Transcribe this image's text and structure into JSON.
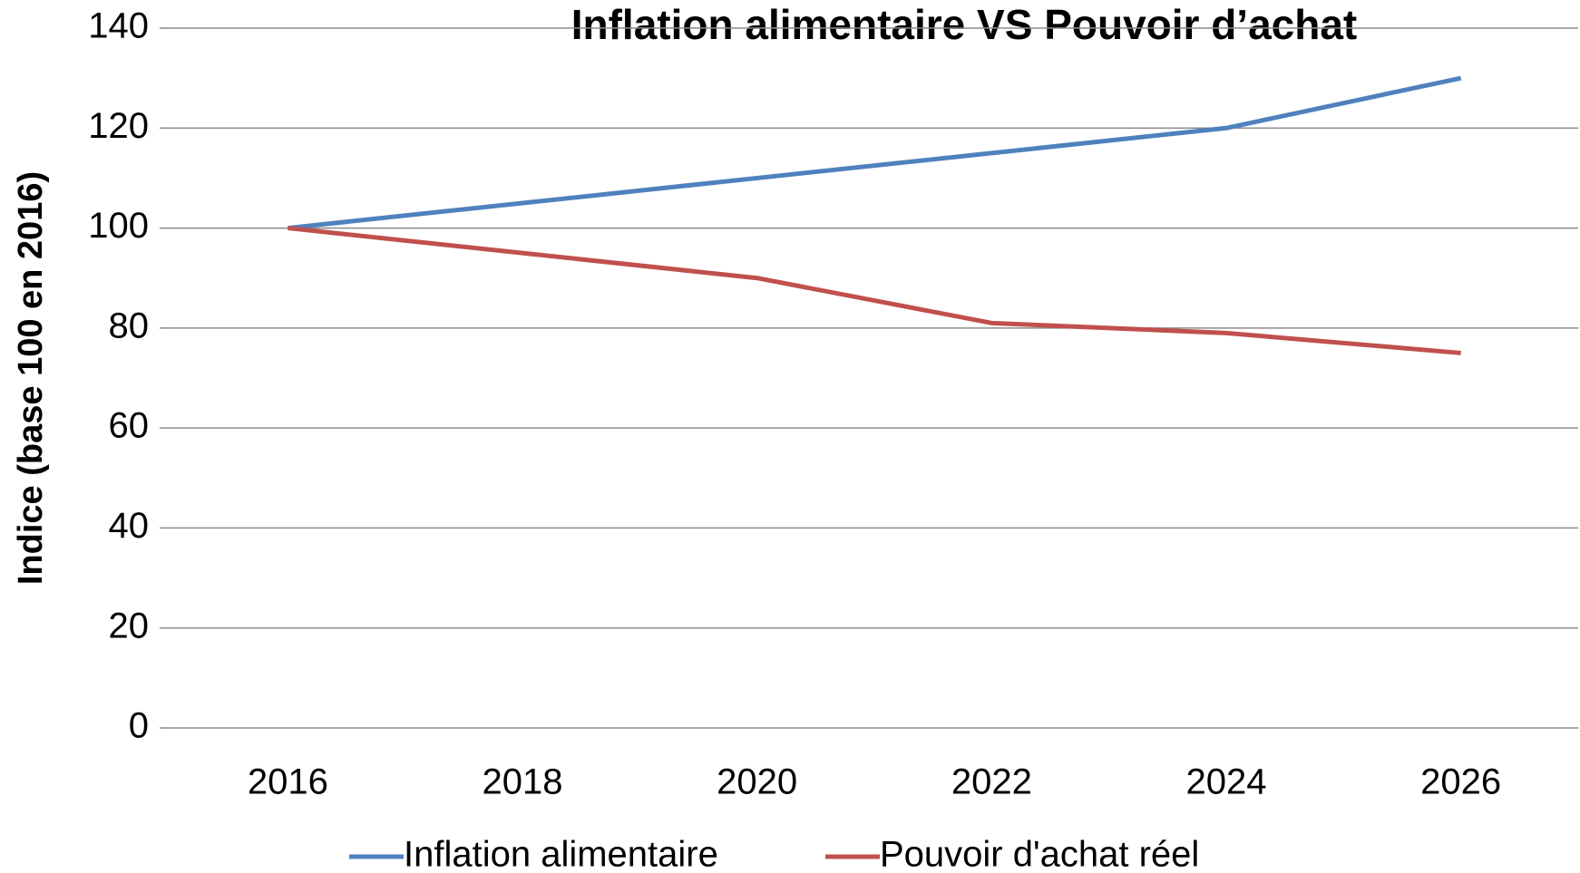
{
  "chart_data": {
    "type": "line",
    "title": "Inflation alimentaire VS Pouvoir d’achat",
    "y_label": "Indice (base 100 en 2016)",
    "categories": [
      "2016",
      "2018",
      "2020",
      "2022",
      "2024",
      "2026"
    ],
    "series": [
      {
        "name": "Inflation alimentaire",
        "color": "#4f81bd",
        "values": [
          100,
          105,
          110,
          115,
          120,
          130
        ]
      },
      {
        "name": "Pouvoir d'achat réel",
        "color": "#c0504d",
        "values": [
          100,
          95,
          90,
          81,
          79,
          75
        ]
      }
    ],
    "ylim": [
      0,
      140
    ],
    "yticks": [
      0,
      20,
      40,
      60,
      80,
      100,
      120,
      140
    ],
    "grid": true,
    "legend": "bottom"
  }
}
